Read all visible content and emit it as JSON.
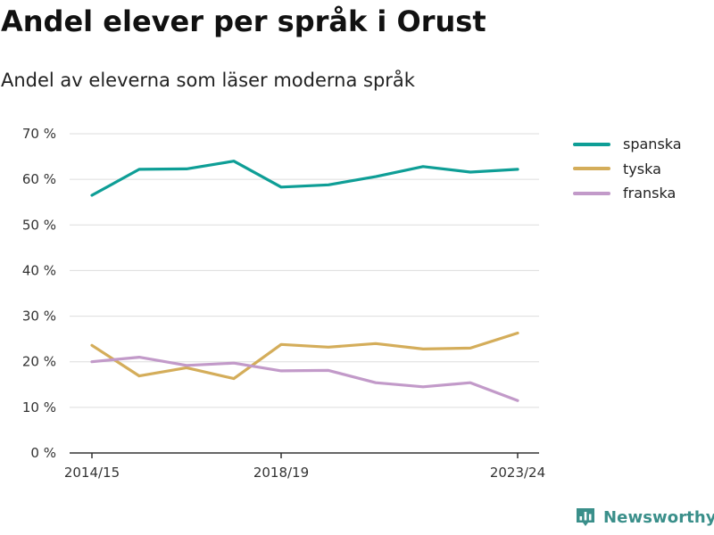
{
  "chart_data": {
    "type": "line",
    "title": "Andel elever per språk i Orust",
    "subtitle": "Andel av eleverna som läser moderna språk",
    "x": [
      "2014/15",
      "2015/16",
      "2016/17",
      "2017/18",
      "2018/19",
      "2019/20",
      "2020/21",
      "2021/22",
      "2022/23",
      "2023/24"
    ],
    "x_tick_labels": [
      "2014/15",
      "2018/19",
      "2023/24"
    ],
    "y_ticks": [
      0,
      10,
      20,
      30,
      40,
      50,
      60,
      70
    ],
    "y_tick_labels": [
      "0 %",
      "10 %",
      "20 %",
      "30 %",
      "40 %",
      "50 %",
      "60 %",
      "70 %"
    ],
    "ylim": [
      0,
      70
    ],
    "grid": true,
    "legend_position": "right",
    "series": [
      {
        "name": "spanska",
        "color": "#0e9e96",
        "values": [
          56.5,
          62.2,
          62.3,
          64.0,
          58.3,
          58.8,
          60.6,
          62.8,
          61.6,
          62.2
        ]
      },
      {
        "name": "tyska",
        "color": "#d4ad5a",
        "values": [
          23.6,
          16.9,
          18.7,
          16.3,
          23.8,
          23.2,
          24.0,
          22.8,
          23.0,
          26.3
        ]
      },
      {
        "name": "franska",
        "color": "#c29ac9",
        "values": [
          20.0,
          21.0,
          19.2,
          19.7,
          18.0,
          18.1,
          15.4,
          14.5,
          15.4,
          11.5
        ]
      }
    ]
  },
  "brand": {
    "name": "Newsworthy",
    "logo_icon": "bar-chart-badge-icon",
    "color": "#3a8f8a"
  }
}
